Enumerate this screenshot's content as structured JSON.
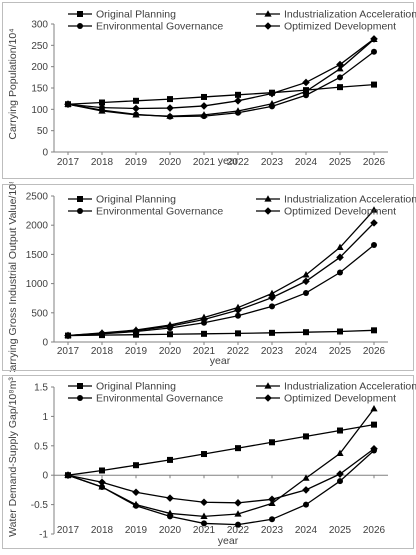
{
  "chart_data": [
    {
      "type": "line",
      "xlabel": "year",
      "ylabel": "Carrying Population/10⁴",
      "x": [
        2017,
        2018,
        2019,
        2020,
        2021,
        2022,
        2023,
        2024,
        2025,
        2026
      ],
      "ylim": [
        0,
        300
      ],
      "yticks": [
        0,
        50,
        100,
        150,
        200,
        250,
        300
      ],
      "grid": false,
      "legend": "top",
      "series": [
        {
          "name": "Original Planning",
          "marker": "square",
          "values": [
            112,
            116,
            120,
            124,
            129,
            134,
            139,
            145,
            152,
            158
          ]
        },
        {
          "name": "Industrialization Acceleration",
          "marker": "triangle",
          "values": [
            112,
            96,
            87,
            84,
            87,
            96,
            113,
            142,
            195,
            264
          ]
        },
        {
          "name": "Environmental Governance",
          "marker": "circle",
          "values": [
            112,
            98,
            88,
            83,
            84,
            92,
            107,
            133,
            175,
            235
          ]
        },
        {
          "name": "Optimized Development",
          "marker": "diamond",
          "values": [
            112,
            104,
            102,
            103,
            108,
            120,
            137,
            163,
            205,
            265
          ]
        }
      ]
    },
    {
      "type": "line",
      "xlabel": "year",
      "ylabel": "Carrying Gross Industrial Output Value/10⁸ yuan",
      "x": [
        2017,
        2018,
        2019,
        2020,
        2021,
        2022,
        2023,
        2024,
        2025,
        2026
      ],
      "ylim": [
        0,
        2500
      ],
      "yticks": [
        0,
        500,
        1000,
        1500,
        2000,
        2500
      ],
      "grid": false,
      "legend": "top",
      "series": [
        {
          "name": "Original Planning",
          "marker": "square",
          "values": [
            110,
            118,
            125,
            133,
            140,
            148,
            157,
            168,
            180,
            200
          ]
        },
        {
          "name": "Industrialization Acceleration",
          "marker": "triangle",
          "values": [
            110,
            155,
            205,
            290,
            420,
            590,
            830,
            1150,
            1620,
            2260
          ]
        },
        {
          "name": "Environmental Governance",
          "marker": "circle",
          "values": [
            110,
            140,
            180,
            240,
            330,
            450,
            610,
            840,
            1190,
            1660
          ]
        },
        {
          "name": "Optimized Development",
          "marker": "diamond",
          "values": [
            110,
            150,
            195,
            270,
            385,
            545,
            760,
            1040,
            1450,
            2040
          ]
        }
      ]
    },
    {
      "type": "line",
      "xlabel": "year",
      "ylabel": "Water Demand-Supply Gap/10⁸m³",
      "x": [
        2017,
        2018,
        2019,
        2020,
        2021,
        2022,
        2023,
        2024,
        2025,
        2026
      ],
      "ylim": [
        -1,
        1.5
      ],
      "yticks": [
        -1,
        -0.5,
        0,
        0.5,
        1,
        1.5
      ],
      "grid": false,
      "legend": "top",
      "series": [
        {
          "name": "Original Planning",
          "marker": "square",
          "values": [
            0.0,
            0.08,
            0.17,
            0.26,
            0.36,
            0.46,
            0.56,
            0.66,
            0.76,
            0.86
          ]
        },
        {
          "name": "Industrialization Acceleration",
          "marker": "triangle",
          "values": [
            0.0,
            -0.2,
            -0.5,
            -0.65,
            -0.7,
            -0.66,
            -0.48,
            -0.05,
            0.37,
            1.13
          ]
        },
        {
          "name": "Environmental Governance",
          "marker": "circle",
          "values": [
            0.0,
            -0.2,
            -0.52,
            -0.7,
            -0.82,
            -0.84,
            -0.75,
            -0.5,
            -0.1,
            0.42
          ]
        },
        {
          "name": "Optimized Development",
          "marker": "diamond",
          "values": [
            0.0,
            -0.12,
            -0.29,
            -0.39,
            -0.46,
            -0.47,
            -0.41,
            -0.25,
            0.02,
            0.45
          ]
        }
      ]
    }
  ]
}
